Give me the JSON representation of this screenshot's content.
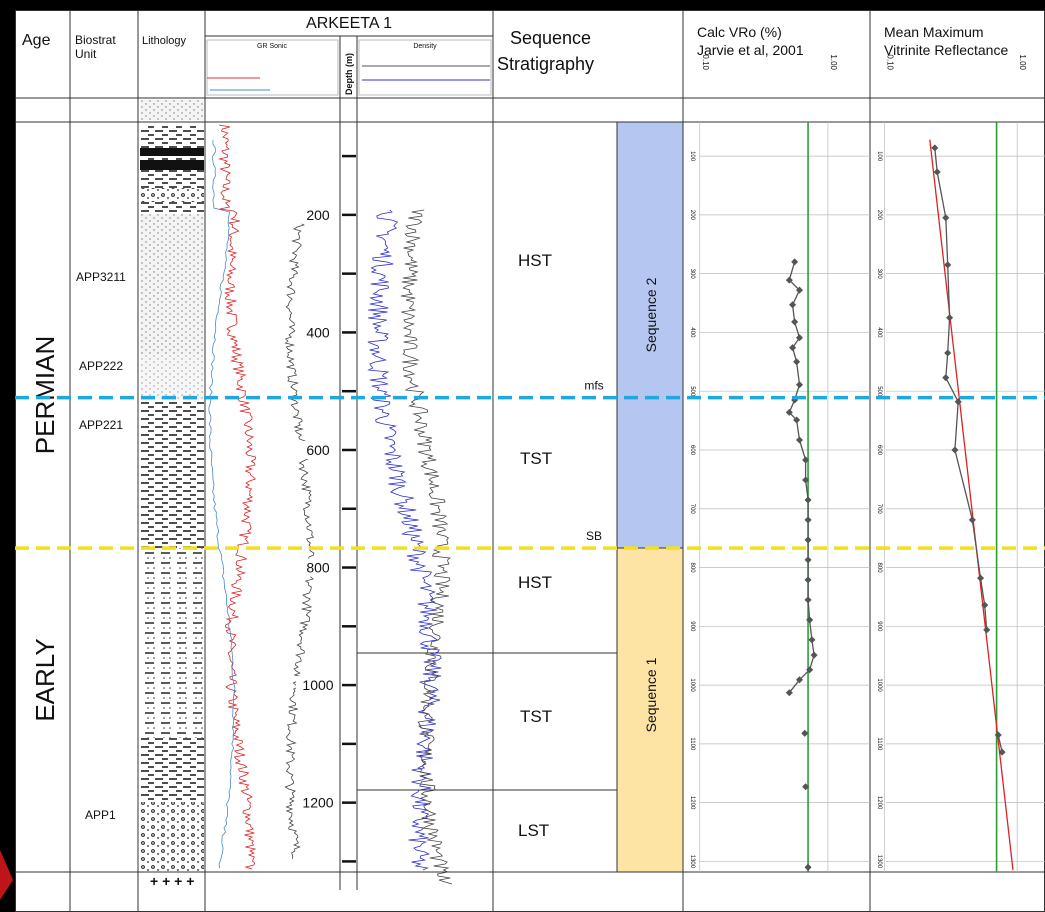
{
  "header": {
    "age": "Age",
    "biostrat": [
      "Biostrat",
      "Unit"
    ],
    "lithology": "Lithology",
    "well": "ARKEETA 1",
    "gr_sonic": "GR Sonic",
    "density": "Density",
    "depth": "Depth (m)",
    "sequence_stratigraphy": [
      "Sequence",
      "Stratigraphy"
    ],
    "vro": [
      "Calc VRo (%)",
      "Jarvie et al, 2001"
    ],
    "mmvr": [
      "Mean Maximum",
      "Vitrinite Reflectance"
    ]
  },
  "ages": [
    "PERMIAN",
    "EARLY"
  ],
  "biostrat_units": [
    "APP3211",
    "APP222",
    "APP221",
    "APP1"
  ],
  "systems_tracts": [
    "HST",
    "TST",
    "HST",
    "TST",
    "LST"
  ],
  "sequences": [
    "Sequence 2",
    "Sequence 1"
  ],
  "surfaces": [
    {
      "label": "mfs",
      "depth": 511
    },
    {
      "label": "SB",
      "depth": 767
    }
  ],
  "depth": {
    "ylim": [
      42,
      1318
    ],
    "labels": [
      200,
      400,
      600,
      800,
      1000,
      1200
    ],
    "ticks": [
      100,
      200,
      300,
      400,
      500,
      600,
      700,
      800,
      900,
      1000,
      1100,
      1200,
      1300
    ]
  },
  "vro": {
    "log": true,
    "xlim": [
      0.074,
      2.13
    ],
    "xticks": [
      {
        "value": 0.1,
        "label": "0.10"
      },
      {
        "value": 1,
        "label": "1.00"
      }
    ],
    "threshold": 0.7,
    "depth": [
      280,
      311,
      328,
      353,
      382,
      409,
      426,
      450,
      489,
      515,
      536,
      549,
      583,
      617,
      651,
      685,
      719,
      753,
      787,
      821,
      855,
      889,
      923,
      949,
      974,
      991,
      1013,
      null,
      1082,
      null,
      1173,
      null,
      1310
    ],
    "values": [
      0.55,
      0.5,
      0.6,
      0.53,
      0.55,
      0.6,
      0.53,
      0.57,
      0.6,
      0.55,
      0.5,
      0.57,
      0.6,
      0.67,
      0.67,
      0.7,
      0.7,
      0.7,
      0.7,
      0.7,
      0.7,
      0.72,
      0.75,
      0.78,
      0.72,
      0.6,
      0.5,
      null,
      0.66,
      null,
      0.67,
      null,
      0.7
    ]
  },
  "mmvr": {
    "log": true,
    "xlim": [
      0.078,
      1.62
    ],
    "xticks": [
      {
        "value": 0.1,
        "label": "0.10"
      },
      {
        "value": 1,
        "label": "1.00"
      }
    ],
    "threshold": 0.7,
    "depth": [
      86,
      127,
      205,
      285,
      375,
      435,
      477,
      518,
      600,
      719,
      818,
      864,
      906,
      null,
      1085,
      1114
    ],
    "values": [
      0.24,
      0.25,
      0.29,
      0.3,
      0.31,
      0.3,
      0.29,
      0.36,
      0.34,
      0.46,
      0.53,
      0.57,
      0.59,
      null,
      0.72,
      0.77
    ],
    "trend_depth": [
      72,
      1315
    ],
    "trend_values": [
      0.22,
      0.93
    ]
  }
}
